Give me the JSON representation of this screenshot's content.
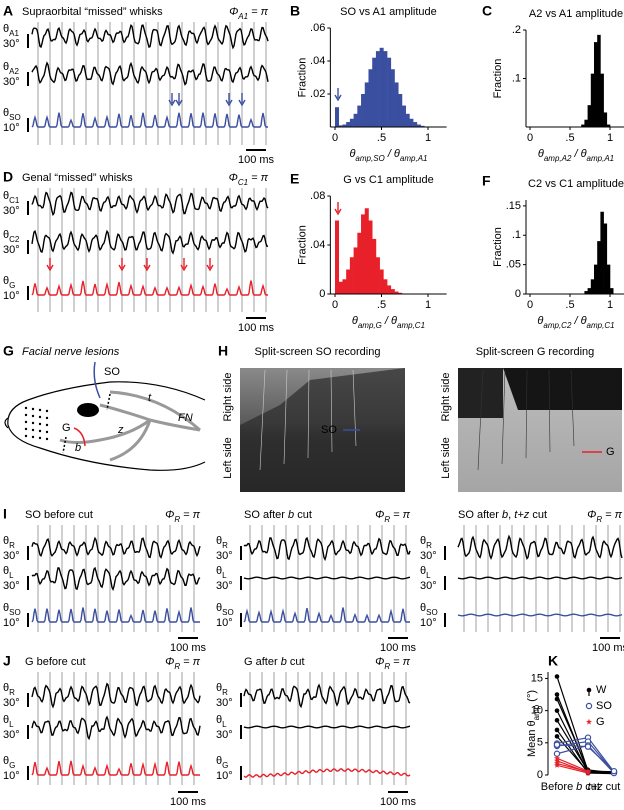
{
  "figure": {
    "A": {
      "letter": "A",
      "title": "Supraorbital “missed” whisks",
      "color": "#3b4fa0",
      "phase": [
        {
          "t": "Φ"
        },
        {
          "sub": "A1"
        },
        {
          "t": " = π"
        }
      ],
      "traces": [
        {
          "label": [
            {
              "t": "θ"
            },
            {
              "sub": "A1"
            }
          ],
          "scale": "30°",
          "color": "#000000"
        },
        {
          "label": [
            {
              "t": "θ"
            },
            {
              "sub": "A2"
            }
          ],
          "scale": "30°",
          "color": "#000000"
        },
        {
          "label": [
            {
              "t": "θ"
            },
            {
              "sub": "SO"
            }
          ],
          "scale": "10°",
          "color": "#3b4fa0"
        }
      ],
      "timebar": "100 ms"
    },
    "D": {
      "letter": "D",
      "title": "Genal “missed” whisks",
      "color": "#e8202a",
      "phase": [
        {
          "t": "Φ"
        },
        {
          "sub": "C1"
        },
        {
          "t": " = π"
        }
      ],
      "traces": [
        {
          "label": [
            {
              "t": "θ"
            },
            {
              "sub": "C1"
            }
          ],
          "scale": "30°",
          "color": "#000000"
        },
        {
          "label": [
            {
              "t": "θ"
            },
            {
              "sub": "C2"
            }
          ],
          "scale": "30°",
          "color": "#000000"
        },
        {
          "label": [
            {
              "t": "θ"
            },
            {
              "sub": "G"
            }
          ],
          "scale": "10°",
          "color": "#e8202a"
        }
      ],
      "timebar": "100 ms"
    },
    "G": {
      "letter": "G",
      "title": "Facial nerve lesions",
      "so": "SO",
      "g": "G",
      "b": "b",
      "z": "z",
      "t": "t",
      "fn": "FN"
    },
    "H": {
      "letter": "H",
      "panels": [
        {
          "title": "Split-screen SO recording",
          "color": "#3b4fa0",
          "top": "Right side",
          "bottom": "Left side",
          "marker": "SO"
        },
        {
          "title": "Split-screen G recording",
          "color": "#e8202a",
          "top": "Right side",
          "bottom": "Left side",
          "marker": "G"
        }
      ]
    },
    "I": {
      "letter": "I",
      "panels": [
        {
          "title": "SO before cut",
          "color": "#3b4fa0",
          "phase": [
            {
              "t": "Φ"
            },
            {
              "sub": "R"
            },
            {
              "t": " = π"
            }
          ],
          "traces": [
            {
              "label": [
                {
                  "t": "θ"
                },
                {
                  "sub": "R"
                }
              ],
              "scale": "30°",
              "color": "#000000"
            },
            {
              "label": [
                {
                  "t": "θ"
                },
                {
                  "sub": "L"
                }
              ],
              "scale": "30°",
              "color": "#000000"
            },
            {
              "label": [
                {
                  "t": "θ"
                },
                {
                  "sub": "SO"
                }
              ],
              "scale": "10°",
              "color": "#3b4fa0"
            }
          ],
          "timebar": "100 ms"
        },
        {
          "title": [
            {
              "t": "SO after "
            },
            {
              "i": "b"
            },
            {
              "t": " cut"
            }
          ],
          "color": "#3b4fa0",
          "phase": [
            {
              "t": "Φ"
            },
            {
              "sub": "R"
            },
            {
              "t": " = π"
            }
          ],
          "traces": [
            {
              "label": [
                {
                  "t": "θ"
                },
                {
                  "sub": "R"
                }
              ],
              "scale": "30°",
              "color": "#000000"
            },
            {
              "label": [
                {
                  "t": "θ"
                },
                {
                  "sub": "L"
                }
              ],
              "scale": "30°",
              "color": "#000000"
            },
            {
              "label": [
                {
                  "t": "θ"
                },
                {
                  "sub": "SO"
                }
              ],
              "scale": "10°",
              "color": "#3b4fa0"
            }
          ],
          "timebar": "100 ms"
        },
        {
          "title": [
            {
              "t": "SO after "
            },
            {
              "i": "b"
            },
            {
              "t": ", "
            },
            {
              "i": "t+z"
            },
            {
              "t": " cut"
            }
          ],
          "color": "#3b4fa0",
          "phase": [
            {
              "t": "Φ"
            },
            {
              "sub": "R"
            },
            {
              "t": " = π"
            }
          ],
          "traces": [
            {
              "label": [
                {
                  "t": "θ"
                },
                {
                  "sub": "R"
                }
              ],
              "scale": "30°",
              "color": "#000000"
            },
            {
              "label": [
                {
                  "t": "θ"
                },
                {
                  "sub": "L"
                }
              ],
              "scale": "30°",
              "color": "#000000"
            },
            {
              "label": [
                {
                  "t": "θ"
                },
                {
                  "sub": "SO"
                }
              ],
              "scale": "10°",
              "color": "#3b4fa0"
            }
          ],
          "timebar": "100 ms"
        }
      ]
    },
    "J": {
      "letter": "J",
      "panels": [
        {
          "title": "G before cut",
          "color": "#e8202a",
          "phase": [
            {
              "t": "Φ"
            },
            {
              "sub": "R"
            },
            {
              "t": " = π"
            }
          ],
          "traces": [
            {
              "label": [
                {
                  "t": "θ"
                },
                {
                  "sub": "R"
                }
              ],
              "scale": "30°",
              "color": "#000000"
            },
            {
              "label": [
                {
                  "t": "θ"
                },
                {
                  "sub": "L"
                }
              ],
              "scale": "30°",
              "color": "#000000"
            },
            {
              "label": [
                {
                  "t": "θ"
                },
                {
                  "sub": "G"
                }
              ],
              "scale": "10°",
              "color": "#e8202a"
            }
          ],
          "timebar": "100 ms"
        },
        {
          "title": [
            {
              "t": "G after "
            },
            {
              "i": "b"
            },
            {
              "t": " cut"
            }
          ],
          "color": "#e8202a",
          "phase": [
            {
              "t": "Φ"
            },
            {
              "sub": "R"
            },
            {
              "t": " = π"
            }
          ],
          "traces": [
            {
              "label": [
                {
                  "t": "θ"
                },
                {
                  "sub": "R"
                }
              ],
              "scale": "30°",
              "color": "#000000"
            },
            {
              "label": [
                {
                  "t": "θ"
                },
                {
                  "sub": "L"
                }
              ],
              "scale": "30°",
              "color": "#000000"
            },
            {
              "label": [
                {
                  "t": "θ"
                },
                {
                  "sub": "G"
                }
              ],
              "scale": "10°",
              "color": "#e8202a"
            }
          ],
          "timebar": "100 ms"
        }
      ]
    }
  },
  "chart_data": [
    {
      "type": "histogram",
      "letter": "B",
      "title": "SO vs A1 amplitude",
      "title_color": "#3b4fa0",
      "ylabel": "Fraction",
      "xlabel": [
        {
          "t": "θ"
        },
        {
          "sub": "amp,SO"
        },
        {
          "t": " / θ"
        },
        {
          "sub": "amp,A1"
        }
      ],
      "color": "#3b4fa0",
      "bins": [
        0,
        0.04,
        0.08,
        0.12,
        0.16,
        0.2,
        0.24,
        0.28,
        0.32,
        0.36,
        0.4,
        0.44,
        0.48,
        0.52,
        0.56,
        0.6,
        0.64,
        0.68,
        0.72,
        0.76,
        0.8,
        0.84,
        0.88,
        0.92,
        0.96,
        1,
        1.04,
        1.08,
        1.12,
        1.16,
        1.2
      ],
      "counts": [
        0.012,
        0.001,
        0.0015,
        0.003,
        0.005,
        0.008,
        0.013,
        0.02,
        0.027,
        0.035,
        0.042,
        0.046,
        0.048,
        0.046,
        0.042,
        0.035,
        0.027,
        0.02,
        0.013,
        0.008,
        0.005,
        0.003,
        0.0015,
        0.0007,
        0.0003,
        0,
        0,
        0,
        0,
        0
      ],
      "xlim": [
        -0.05,
        1.2
      ],
      "ylim": [
        0,
        0.06
      ],
      "xticks": [
        0,
        {
          "value": 0.5,
          "label": ".5"
        },
        1
      ],
      "yticks": [
        {
          "value": 0.02,
          "label": ".02"
        },
        {
          "value": 0.04,
          "label": ".04"
        },
        {
          "value": 0.06,
          "label": ".06"
        }
      ]
    },
    {
      "type": "histogram",
      "letter": "C",
      "title": "A2 vs A1 amplitude",
      "title_color": "#000000",
      "ylabel": "Fraction",
      "xlabel": [
        {
          "t": "θ"
        },
        {
          "sub": "amp,A2"
        },
        {
          "t": " / θ"
        },
        {
          "sub": "amp,A1"
        }
      ],
      "color": "#000000",
      "bins": [
        0,
        0.04,
        0.08,
        0.12,
        0.16,
        0.2,
        0.24,
        0.28,
        0.32,
        0.36,
        0.4,
        0.44,
        0.48,
        0.52,
        0.56,
        0.6,
        0.64,
        0.68,
        0.72,
        0.76,
        0.8,
        0.84,
        0.88,
        0.92,
        0.96,
        1,
        1.04,
        1.08,
        1.12,
        1.16,
        1.2
      ],
      "counts": [
        0,
        0,
        0,
        0,
        0,
        0,
        0,
        0,
        0,
        0,
        0,
        0,
        0,
        0,
        0,
        0,
        0.005,
        0.015,
        0.045,
        0.11,
        0.175,
        0.19,
        0.11,
        0.03,
        0.005,
        0,
        0,
        0,
        0,
        0
      ],
      "xlim": [
        -0.05,
        1.2
      ],
      "ylim": [
        0,
        0.2
      ],
      "xticks": [
        0,
        {
          "value": 0.5,
          "label": ".5"
        },
        1
      ],
      "yticks": [
        {
          "value": 0.1,
          "label": ".1"
        },
        {
          "value": 0.2,
          "label": ".2"
        }
      ]
    },
    {
      "type": "histogram",
      "letter": "E",
      "title": "G vs C1 amplitude",
      "title_color": "#e8202a",
      "ylabel": "Fraction",
      "xlabel": [
        {
          "t": "θ"
        },
        {
          "sub": "amp,G"
        },
        {
          "t": " / θ"
        },
        {
          "sub": "amp,C1"
        }
      ],
      "color": "#e8202a",
      "bins": [
        0,
        0.04,
        0.08,
        0.12,
        0.16,
        0.2,
        0.24,
        0.28,
        0.32,
        0.36,
        0.4,
        0.44,
        0.48,
        0.52,
        0.56,
        0.6,
        0.64,
        0.68,
        0.72,
        0.76,
        0.8,
        0.84,
        0.88,
        0.92,
        0.96,
        1,
        1.04,
        1.08,
        1.12,
        1.16,
        1.2
      ],
      "counts": [
        0.06,
        0.01,
        0.012,
        0.02,
        0.03,
        0.038,
        0.05,
        0.065,
        0.07,
        0.06,
        0.045,
        0.03,
        0.02,
        0.012,
        0.007,
        0.004,
        0.002,
        0.001,
        0,
        0,
        0,
        0,
        0,
        0,
        0,
        0,
        0,
        0,
        0,
        0
      ],
      "xlim": [
        -0.05,
        1.2
      ],
      "ylim": [
        0,
        0.08
      ],
      "xticks": [
        0,
        {
          "value": 0.5,
          "label": ".5"
        },
        1
      ],
      "yticks": [
        0,
        {
          "value": 0.04,
          "label": ".04"
        },
        {
          "value": 0.08,
          "label": ".08"
        }
      ]
    },
    {
      "type": "histogram",
      "letter": "F",
      "title": "C2 vs C1 amplitude",
      "title_color": "#000000",
      "ylabel": "Fraction",
      "xlabel": [
        {
          "t": "θ"
        },
        {
          "sub": "amp,C2"
        },
        {
          "t": " / θ"
        },
        {
          "sub": "amp,C1"
        }
      ],
      "color": "#000000",
      "bins": [
        0,
        0.04,
        0.08,
        0.12,
        0.16,
        0.2,
        0.24,
        0.28,
        0.32,
        0.36,
        0.4,
        0.44,
        0.48,
        0.52,
        0.56,
        0.6,
        0.64,
        0.68,
        0.72,
        0.76,
        0.8,
        0.84,
        0.88,
        0.92,
        0.96,
        1,
        1.04,
        1.08,
        1.12,
        1.16,
        1.2
      ],
      "counts": [
        0,
        0,
        0,
        0,
        0,
        0,
        0,
        0,
        0,
        0,
        0,
        0,
        0,
        0,
        0,
        0,
        0,
        0.005,
        0.01,
        0.025,
        0.05,
        0.09,
        0.14,
        0.12,
        0.05,
        0.01,
        0,
        0,
        0,
        0
      ],
      "xlim": [
        -0.05,
        1.2
      ],
      "ylim": [
        0,
        0.16
      ],
      "xticks": [
        0,
        {
          "value": 0.5,
          "label": ".5"
        },
        1
      ],
      "yticks": [
        0,
        {
          "value": 0.05,
          "label": ".05"
        },
        {
          "value": 0.1,
          "label": ".1"
        },
        {
          "value": 0.15,
          "label": ".15"
        }
      ]
    },
    {
      "type": "line",
      "letter": "K",
      "ylabel": [
        {
          "t": "Mean θ"
        },
        {
          "sub": "amp"
        },
        {
          "t": " (°)"
        }
      ],
      "categories": [
        "Before",
        [
          {
            "i": "b"
          },
          {
            "t": " cut"
          }
        ],
        [
          {
            "i": "t+z"
          },
          {
            "t": " cut"
          }
        ]
      ],
      "ylim": [
        0,
        16
      ],
      "yticks": [
        0,
        5,
        10,
        15
      ],
      "series": [
        {
          "name": "W",
          "color": "#000000",
          "marker": "dot",
          "values": [
            [
              15.3,
              0.6,
              0.3
            ],
            [
              12.5,
              0.5,
              0.4
            ],
            [
              11.8,
              0.8,
              0.3
            ],
            [
              10,
              0.4,
              0.2
            ],
            [
              8.5,
              0.6,
              0.5
            ],
            [
              7,
              0.3,
              0.2
            ],
            [
              6,
              0.5,
              0.4
            ]
          ]
        },
        {
          "name": "SO",
          "color": "#3b4fa0",
          "marker": "open",
          "values": [
            [
              4.9,
              5.8,
              0.5
            ],
            [
              4.5,
              5.2,
              0.4
            ],
            [
              3.3,
              4.6,
              0.3
            ],
            [
              4.7,
              4.4,
              0.6
            ]
          ]
        },
        {
          "name": "G",
          "color": "#e8202a",
          "marker": "star",
          "values": [
            [
              2.6,
              0.6,
              null
            ],
            [
              2.2,
              0.4,
              null
            ],
            [
              1.8,
              0.5,
              null
            ],
            [
              1.5,
              0.3,
              null
            ]
          ]
        }
      ]
    }
  ]
}
